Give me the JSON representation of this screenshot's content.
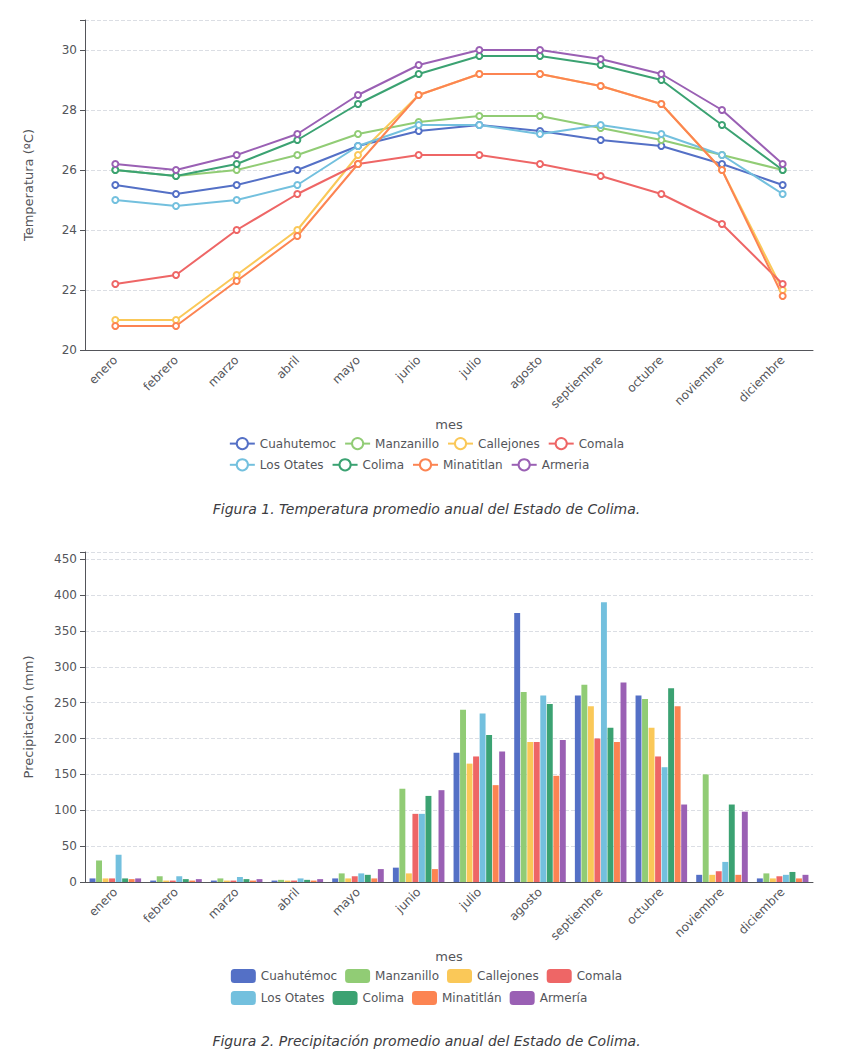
{
  "chart_data": [
    {
      "type": "line",
      "title": "Figura 1. Temperatura promedio anual del Estado de Colima.",
      "x_label": "mes",
      "y_label": "Temperatura (ºC)",
      "categories": [
        "enero",
        "febrero",
        "marzo",
        "abril",
        "mayo",
        "junio",
        "julio",
        "agosto",
        "septiembre",
        "octubre",
        "noviembre",
        "diciembre"
      ],
      "series": [
        {
          "name": "Cuahutemoc",
          "values": [
            25.5,
            25.2,
            25.5,
            26.0,
            26.8,
            27.3,
            27.5,
            27.3,
            27.0,
            26.8,
            26.2,
            25.5
          ]
        },
        {
          "name": "Manzanillo",
          "values": [
            26.0,
            25.8,
            26.0,
            26.5,
            27.2,
            27.6,
            27.8,
            27.8,
            27.4,
            27.0,
            26.5,
            26.0
          ]
        },
        {
          "name": "Callejones",
          "values": [
            21.0,
            21.0,
            22.5,
            24.0,
            26.5,
            28.5,
            29.2,
            29.2,
            28.8,
            28.2,
            26.0,
            22.0
          ]
        },
        {
          "name": "Comala",
          "values": [
            22.2,
            22.5,
            24.0,
            25.2,
            26.2,
            26.5,
            26.5,
            26.2,
            25.8,
            25.2,
            24.2,
            22.2
          ]
        },
        {
          "name": "Los Otates",
          "values": [
            25.0,
            24.8,
            25.0,
            25.5,
            26.8,
            27.5,
            27.5,
            27.2,
            27.5,
            27.2,
            26.5,
            25.2
          ]
        },
        {
          "name": "Colima",
          "values": [
            26.0,
            25.8,
            26.2,
            27.0,
            28.2,
            29.2,
            29.8,
            29.8,
            29.5,
            29.0,
            27.5,
            26.0
          ]
        },
        {
          "name": "Minatitlan",
          "values": [
            20.8,
            20.8,
            22.3,
            23.8,
            26.2,
            28.5,
            29.2,
            29.2,
            28.8,
            28.2,
            26.0,
            21.8
          ]
        },
        {
          "name": "Armeria",
          "values": [
            26.2,
            26.0,
            26.5,
            27.2,
            28.5,
            29.5,
            30.0,
            30.0,
            29.7,
            29.2,
            28.0,
            26.2
          ]
        }
      ],
      "ylim": [
        20,
        31
      ],
      "yticks": [
        20,
        22,
        24,
        26,
        28,
        30
      ],
      "grid": true,
      "legend": "bottom"
    },
    {
      "type": "bar",
      "title": "Figura 2. Precipitación promedio anual del Estado de Colima.",
      "x_label": "mes",
      "y_label": "Precipitación (mm)",
      "categories": [
        "enero",
        "febrero",
        "marzo",
        "abril",
        "mayo",
        "junio",
        "julio",
        "agosto",
        "septiembre",
        "octubre",
        "noviembre",
        "diciembre"
      ],
      "series": [
        {
          "name": "Cuahutémoc",
          "values": [
            5,
            2,
            2,
            2,
            5,
            20,
            180,
            375,
            260,
            260,
            10,
            5
          ]
        },
        {
          "name": "Manzanillo",
          "values": [
            30,
            8,
            5,
            3,
            12,
            130,
            240,
            265,
            275,
            255,
            150,
            12
          ]
        },
        {
          "name": "Callejones",
          "values": [
            5,
            2,
            2,
            2,
            5,
            12,
            165,
            195,
            245,
            215,
            10,
            5
          ]
        },
        {
          "name": "Comala",
          "values": [
            5,
            2,
            2,
            2,
            8,
            95,
            175,
            195,
            200,
            175,
            15,
            8
          ]
        },
        {
          "name": "Los Otates",
          "values": [
            38,
            8,
            7,
            5,
            12,
            95,
            235,
            260,
            390,
            160,
            28,
            10
          ]
        },
        {
          "name": "Colima",
          "values": [
            5,
            4,
            4,
            3,
            10,
            120,
            205,
            248,
            215,
            270,
            108,
            14
          ]
        },
        {
          "name": "Minatitlán",
          "values": [
            4,
            2,
            2,
            2,
            5,
            18,
            135,
            148,
            195,
            245,
            10,
            5
          ]
        },
        {
          "name": "Armería",
          "values": [
            5,
            4,
            4,
            4,
            18,
            128,
            182,
            198,
            278,
            108,
            98,
            10
          ]
        }
      ],
      "ylim": [
        0,
        460
      ],
      "yticks": [
        0,
        50,
        100,
        150,
        200,
        250,
        300,
        350,
        400,
        450
      ],
      "grid": true,
      "legend": "bottom"
    }
  ]
}
